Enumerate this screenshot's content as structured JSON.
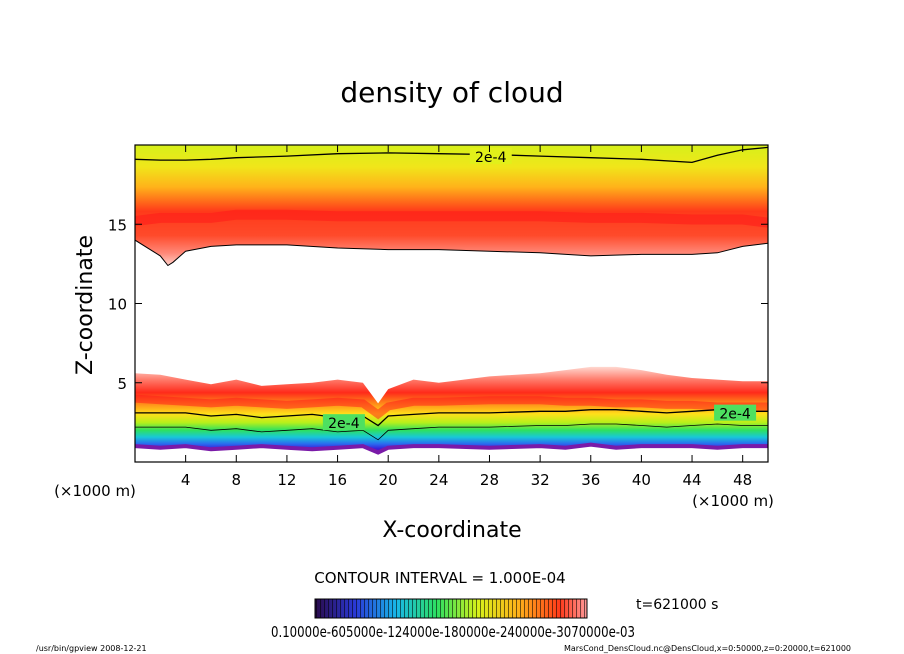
{
  "chart_data": {
    "type": "contour",
    "title": "density of cloud",
    "xlabel": "X-coordinate",
    "ylabel": "Z-coordinate",
    "x_unit_label": "(×1000 m)",
    "y_unit_label": "(×1000 m)",
    "xlim": [
      0,
      50
    ],
    "ylim": [
      0,
      20
    ],
    "x_ticks": [
      4,
      8,
      12,
      16,
      20,
      24,
      28,
      32,
      36,
      40,
      44,
      48
    ],
    "y_ticks": [
      5,
      10,
      15
    ],
    "contour_label": "2e-4",
    "contour_interval": "CONTOUR INTERVAL = 1.000E-04",
    "time_label": "t=621000 s",
    "colorbar_text": "0.10000e-605000e-124000e-180000e-240000e-3070000e-03",
    "upper_band": {
      "x": [
        0,
        2,
        2.6,
        3,
        4,
        6,
        8,
        12,
        16,
        20,
        24,
        28,
        32,
        36,
        40,
        44,
        46,
        48,
        50
      ],
      "bottom": [
        14.0,
        13.0,
        12.4,
        12.6,
        13.3,
        13.6,
        13.7,
        13.7,
        13.5,
        13.4,
        13.4,
        13.3,
        13.2,
        13.0,
        13.1,
        13.1,
        13.2,
        13.6,
        13.8
      ],
      "contour_2e4": [
        19.1,
        19.05,
        19.05,
        19.05,
        19.05,
        19.1,
        19.2,
        19.3,
        19.45,
        19.5,
        19.45,
        19.4,
        19.3,
        19.2,
        19.1,
        18.9,
        19.35,
        19.7,
        19.85
      ],
      "core": [
        15.2,
        15.4,
        15.4,
        15.4,
        15.4,
        15.4,
        15.6,
        15.6,
        15.5,
        15.5,
        15.5,
        15.5,
        15.5,
        15.4,
        15.4,
        15.3,
        15.3,
        15.3,
        15.1
      ]
    },
    "lower_band": {
      "x": [
        0,
        2,
        4,
        6,
        8,
        10,
        12,
        14,
        16,
        18,
        19.2,
        20,
        22,
        24,
        28,
        32,
        34,
        36,
        38,
        40,
        42,
        44,
        46,
        48,
        50
      ],
      "top": [
        5.6,
        5.5,
        5.2,
        4.9,
        5.2,
        4.8,
        4.9,
        5.0,
        5.2,
        5.0,
        3.7,
        4.6,
        5.2,
        5.0,
        5.4,
        5.6,
        5.8,
        6.0,
        6.0,
        5.8,
        5.5,
        5.3,
        5.2,
        5.1,
        5.1
      ],
      "core": [
        4.0,
        3.9,
        3.8,
        3.7,
        3.8,
        3.7,
        3.6,
        3.7,
        3.8,
        3.7,
        3.0,
        3.5,
        3.8,
        3.8,
        3.9,
        3.9,
        3.8,
        3.8,
        3.7,
        3.7,
        3.6,
        3.6,
        3.5,
        3.5,
        3.5
      ],
      "contour_2e4": [
        3.1,
        3.1,
        3.1,
        2.9,
        3.0,
        2.8,
        2.9,
        3.0,
        2.8,
        2.9,
        2.3,
        2.9,
        3.0,
        3.1,
        3.1,
        3.2,
        3.2,
        3.3,
        3.3,
        3.2,
        3.1,
        3.2,
        3.3,
        3.2,
        3.2
      ],
      "bottom": [
        1.0,
        0.9,
        1.0,
        0.8,
        0.9,
        1.0,
        0.9,
        0.8,
        0.9,
        1.0,
        0.6,
        0.9,
        1.0,
        1.0,
        0.9,
        1.0,
        0.9,
        1.1,
        0.9,
        1.0,
        1.0,
        1.0,
        0.9,
        1.0,
        1.0
      ]
    }
  },
  "footer": {
    "left": "/usr/bin/gpview   2008-12-21",
    "right": "MarsCond_DensCloud.nc@DensCloud,x=0:50000,z=0:20000,t=621000"
  }
}
